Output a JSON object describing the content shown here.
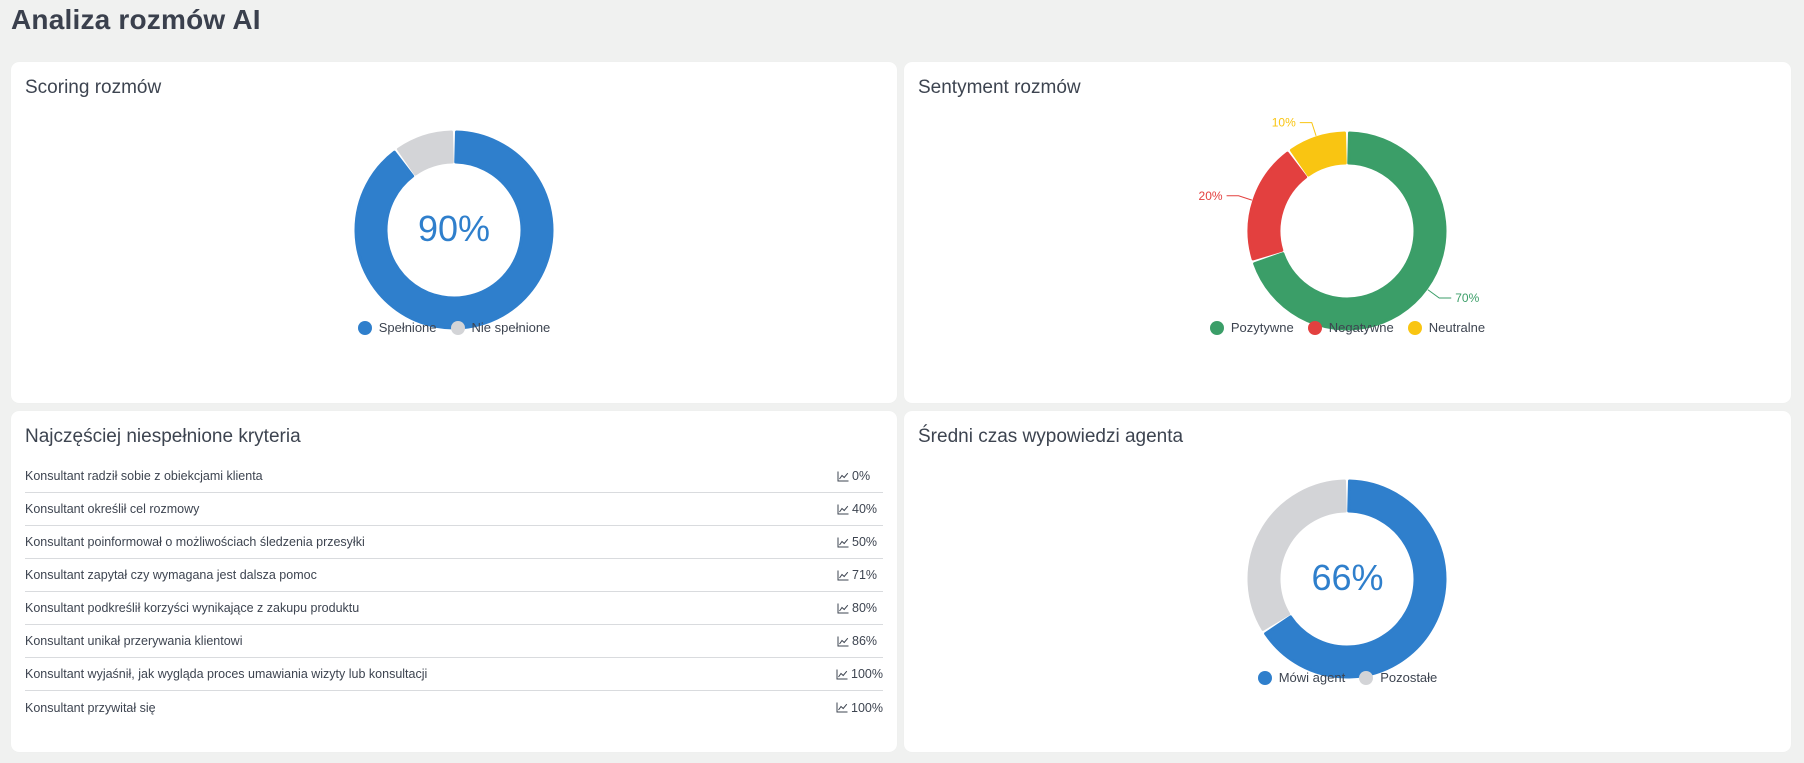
{
  "page": {
    "title": "Analiza rozmów AI"
  },
  "scoring": {
    "title": "Scoring rozmów",
    "center": "90%",
    "value_fraction": 0.9,
    "colors": {
      "fulfilled": "#2f7fcc",
      "unfulfilled": "#d3d4d7"
    },
    "legend": [
      {
        "label": "Spełnione",
        "color": "#2f7fcc"
      },
      {
        "label": "Nie spełnione",
        "color": "#d3d4d7"
      }
    ]
  },
  "sentiment": {
    "title": "Sentyment rozmów",
    "slices": [
      {
        "label": "Pozytywne",
        "value": 70,
        "pct_label": "70%",
        "color": "#3b9e68"
      },
      {
        "label": "Negatywne",
        "value": 20,
        "pct_label": "20%",
        "color": "#e3403f"
      },
      {
        "label": "Neutralne",
        "value": 10,
        "pct_label": "10%",
        "color": "#f9c512"
      }
    ]
  },
  "criteria": {
    "title": "Najczęściej niespełnione kryteria",
    "rows": [
      {
        "label": "Konsultant radził sobie z obiekcjami klienta",
        "value": "0%"
      },
      {
        "label": "Konsultant określił cel rozmowy",
        "value": "40%"
      },
      {
        "label": "Konsultant poinformował o możliwościach śledzenia przesyłki",
        "value": "50%"
      },
      {
        "label": "Konsultant zapytał czy wymagana jest dalsza pomoc",
        "value": "71%"
      },
      {
        "label": "Konsultant podkreślił korzyści wynikające z zakupu produktu",
        "value": "80%"
      },
      {
        "label": "Konsultant unikał przerywania klientowi",
        "value": "86%"
      },
      {
        "label": "Konsultant wyjaśnił, jak wygląda proces umawiania wizyty lub konsultacji",
        "value": "100%"
      },
      {
        "label": "Konsultant przywitał się",
        "value": "100%"
      }
    ]
  },
  "speech": {
    "title": "Średni czas wypowiedzi agenta",
    "center": "66%",
    "value_fraction": 0.66,
    "legend": [
      {
        "label": "Mówi agent",
        "color": "#2f7fcc"
      },
      {
        "label": "Pozostałe",
        "color": "#d3d4d7"
      }
    ]
  }
}
